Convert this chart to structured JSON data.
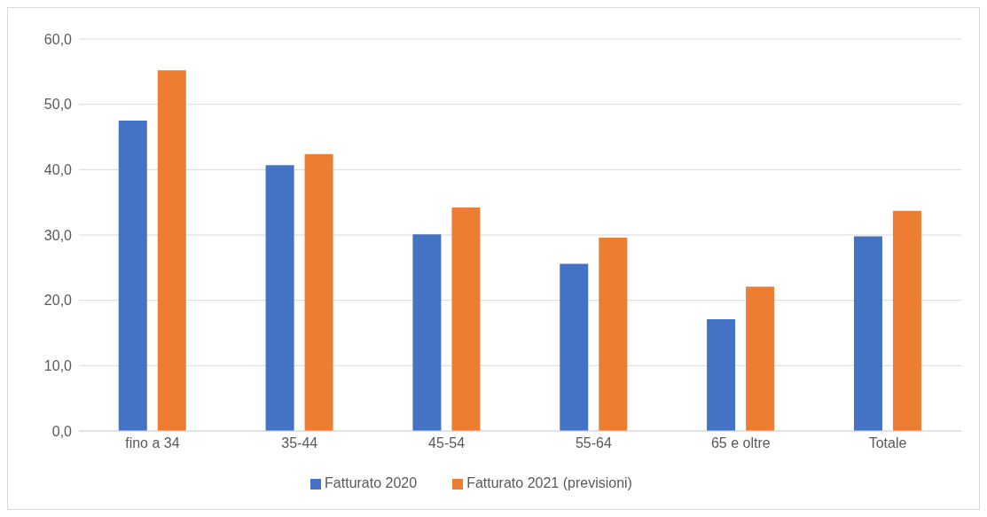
{
  "chart_data": {
    "type": "bar",
    "categories": [
      "fino a 34",
      "35-44",
      "45-54",
      "55-64",
      "65 e oltre",
      "Totale"
    ],
    "series": [
      {
        "name": "Fatturato 2020",
        "color": "#4472c4",
        "values": [
          47.5,
          40.7,
          30.1,
          25.6,
          17.1,
          29.8
        ]
      },
      {
        "name": "Fatturato 2021 (previsioni)",
        "color": "#ed7d31",
        "values": [
          55.2,
          42.4,
          34.2,
          29.6,
          22.1,
          33.7
        ]
      }
    ],
    "ylim": [
      0,
      60
    ],
    "yticks": [
      {
        "value": 0,
        "label": "0,0"
      },
      {
        "value": 10,
        "label": "10,0"
      },
      {
        "value": 20,
        "label": "20,0"
      },
      {
        "value": 30,
        "label": "30,0"
      },
      {
        "value": 40,
        "label": "40,0"
      },
      {
        "value": 50,
        "label": "50,0"
      },
      {
        "value": 60,
        "label": "60,0"
      }
    ],
    "grid": "y",
    "legend": "bottom"
  }
}
